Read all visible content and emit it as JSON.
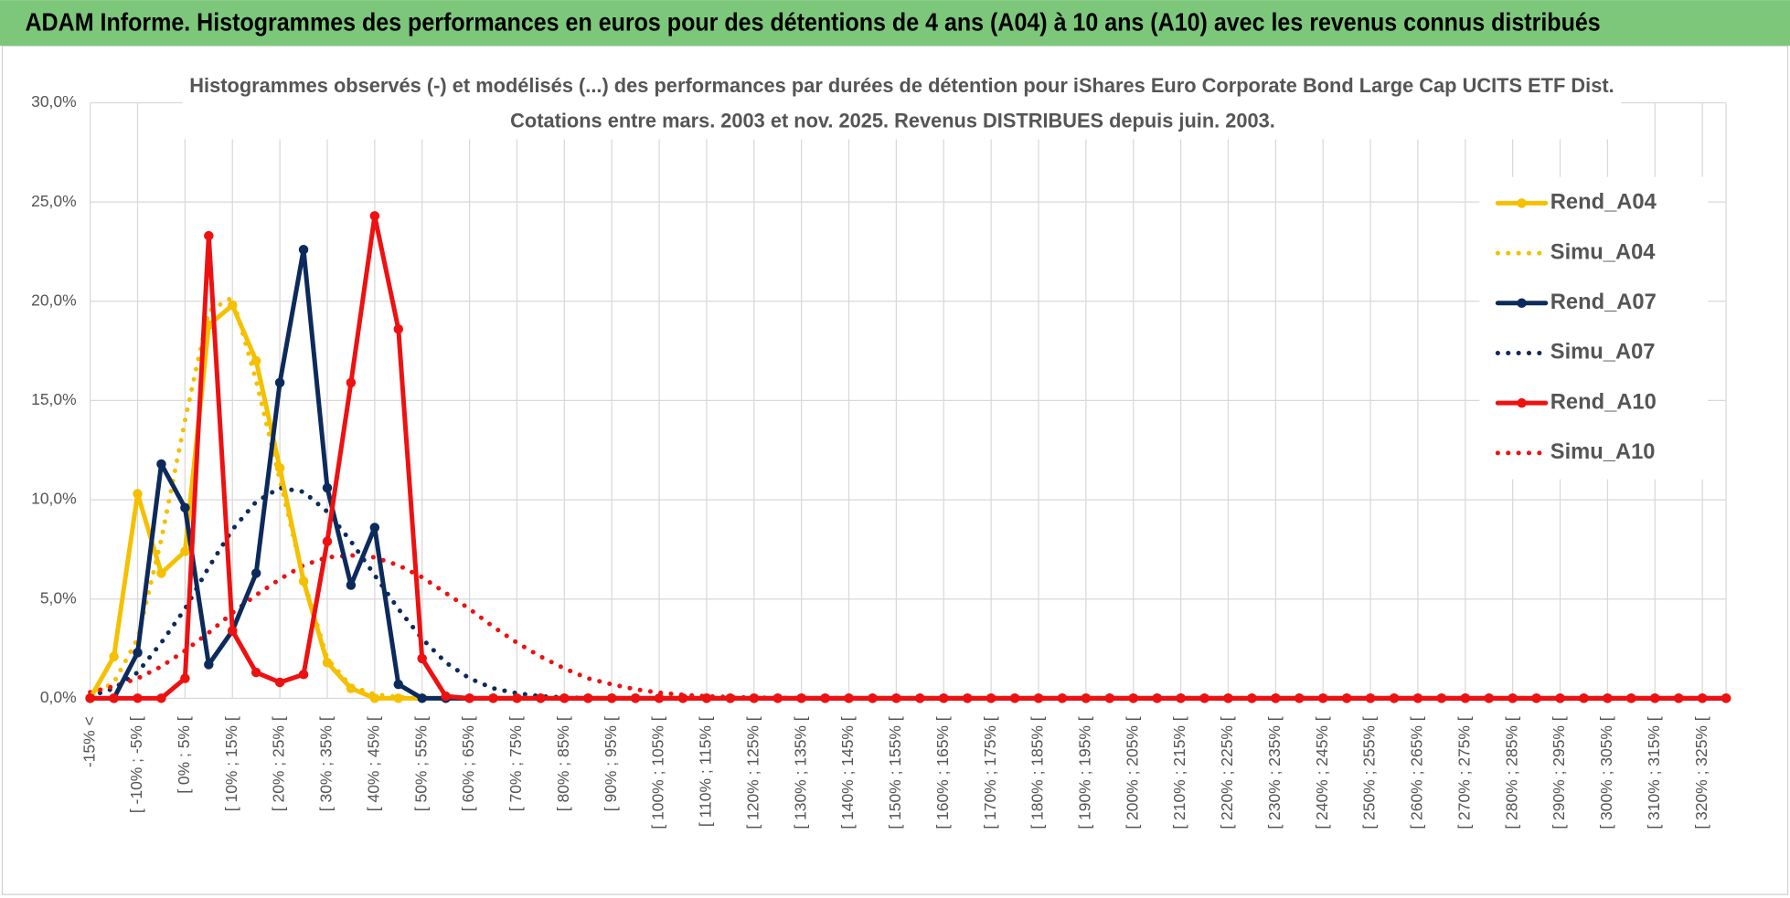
{
  "header": "ADAM Informe. Histogrammes des performances en euros pour des détentions de 4 ans (A04) à 10 ans (A10) avec les revenus connus distribués",
  "chart_data": {
    "type": "line",
    "title": "Histogrammes observés (-) et modélisés (...) des performances par durées de détention pour iShares Euro Corporate Bond Large Cap UCITS ETF Dist.",
    "subtitle": "Cotations entre mars. 2003  et nov. 2025.  Revenus DISTRIBUES depuis juin. 2003.",
    "categories": [
      "-15% <",
      null,
      "[ -10% ; -5% [",
      null,
      "[ 0% ; 5% [",
      null,
      "[ 10% ; 15% [",
      null,
      "[ 20% ; 25% [",
      null,
      "[ 30% ; 35% [",
      null,
      "[ 40% ; 45% [",
      null,
      "[ 50% ; 55% [",
      null,
      "[ 60% ; 65% [",
      null,
      "[ 70% ; 75% [",
      null,
      "[ 80% ; 85% [",
      null,
      "[ 90% ; 95% [",
      null,
      "[ 100% ; 105% [",
      null,
      "[ 110% ; 115% [",
      null,
      "[ 120% ; 125% [",
      null,
      "[ 130% ; 135% [",
      null,
      "[ 140% ; 145% [",
      null,
      "[ 150% ; 155% [",
      null,
      "[ 160% ; 165% [",
      null,
      "[ 170% ; 175% [",
      null,
      "[ 180% ; 185% [",
      null,
      "[ 190% ; 195% [",
      null,
      "[ 200% ; 205% [",
      null,
      "[ 210% ; 215% [",
      null,
      "[ 220% ; 225% [",
      null,
      "[ 230% ; 235% [",
      null,
      "[ 240% ; 245% [",
      null,
      "[ 250% ; 255% [",
      null,
      "[ 260% ; 265% [",
      null,
      "[ 270% ; 275% [",
      null,
      "[ 280% ; 285% [",
      null,
      "[ 290% ; 295% [",
      null,
      "[ 300% ; 305% [",
      null,
      "[ 310% ; 315% [",
      null,
      "[ 320% ; 325% [",
      null
    ],
    "series": [
      {
        "name": "Rend_A04",
        "color": "#f5c000",
        "style": "solid",
        "values": [
          0,
          2.1,
          10.3,
          6.3,
          7.4,
          18.8,
          19.8,
          17.0,
          11.6,
          5.9,
          1.8,
          0.5,
          0,
          0,
          0,
          0,
          0,
          0,
          0,
          0,
          0,
          0,
          0,
          0,
          0,
          0,
          0,
          0,
          0,
          0,
          0,
          0,
          0,
          0,
          0,
          0,
          0,
          0,
          0,
          0,
          0,
          0,
          0,
          0,
          0,
          0,
          0,
          0,
          0,
          0,
          0,
          0,
          0,
          0,
          0,
          0,
          0,
          0,
          0,
          0,
          0,
          0,
          0,
          0,
          0,
          0,
          0,
          0,
          0,
          0
        ]
      },
      {
        "name": "Simu_A04",
        "color": "#f5c000",
        "style": "dotted",
        "values": [
          0.1,
          0.8,
          3.0,
          8.0,
          14.0,
          19.5,
          20.2,
          16.0,
          11.0,
          6.0,
          2.0,
          0.6,
          0.2,
          0.05,
          0,
          0,
          0,
          0,
          0,
          0,
          0,
          0,
          0,
          0,
          0,
          0,
          0,
          0,
          0,
          0,
          0,
          0,
          0,
          0,
          0,
          0,
          0,
          0,
          0,
          0,
          0,
          0,
          0,
          0,
          0,
          0,
          0,
          0,
          0,
          0,
          0,
          0,
          0,
          0,
          0,
          0,
          0,
          0,
          0,
          0,
          0,
          0,
          0,
          0,
          0,
          0,
          0,
          0,
          0,
          0
        ]
      },
      {
        "name": "Rend_A07",
        "color": "#0d2a5c",
        "style": "solid",
        "values": [
          0,
          0,
          2.3,
          11.8,
          9.6,
          1.7,
          3.4,
          6.3,
          15.9,
          22.6,
          10.6,
          5.7,
          8.6,
          0.7,
          0,
          0,
          0,
          0,
          0,
          0,
          0,
          0,
          0,
          0,
          0,
          0,
          0,
          0,
          0,
          0,
          0,
          0,
          0,
          0,
          0,
          0,
          0,
          0,
          0,
          0,
          0,
          0,
          0,
          0,
          0,
          0,
          0,
          0,
          0,
          0,
          0,
          0,
          0,
          0,
          0,
          0,
          0,
          0,
          0,
          0,
          0,
          0,
          0,
          0,
          0,
          0,
          0,
          0,
          0,
          0
        ]
      },
      {
        "name": "Simu_A07",
        "color": "#0d2a5c",
        "style": "dotted",
        "values": [
          0.1,
          0.5,
          1.3,
          2.8,
          4.5,
          6.6,
          8.5,
          9.9,
          10.6,
          10.4,
          9.4,
          7.9,
          6.2,
          4.5,
          3.0,
          1.8,
          1.0,
          0.5,
          0.25,
          0.1,
          0.04,
          0.01,
          0,
          0,
          0,
          0,
          0,
          0,
          0,
          0,
          0,
          0,
          0,
          0,
          0,
          0,
          0,
          0,
          0,
          0,
          0,
          0,
          0,
          0,
          0,
          0,
          0,
          0,
          0,
          0,
          0,
          0,
          0,
          0,
          0,
          0,
          0,
          0,
          0,
          0,
          0,
          0,
          0,
          0,
          0,
          0,
          0,
          0,
          0,
          0
        ]
      },
      {
        "name": "Rend_A10",
        "color": "#ee1111",
        "style": "solid",
        "values": [
          0,
          0,
          0,
          0,
          1.0,
          23.3,
          3.4,
          1.3,
          0.8,
          1.2,
          7.9,
          15.9,
          24.3,
          18.6,
          2.0,
          0.1,
          0,
          0,
          0,
          0,
          0,
          0,
          0,
          0,
          0,
          0,
          0,
          0,
          0,
          0,
          0,
          0,
          0,
          0,
          0,
          0,
          0,
          0,
          0,
          0,
          0,
          0,
          0,
          0,
          0,
          0,
          0,
          0,
          0,
          0,
          0,
          0,
          0,
          0,
          0,
          0,
          0,
          0,
          0,
          0,
          0,
          0,
          0,
          0,
          0,
          0,
          0,
          0,
          0,
          0
        ]
      },
      {
        "name": "Simu_A10",
        "color": "#ee1111",
        "style": "dotted",
        "values": [
          0.3,
          0.6,
          1.0,
          1.6,
          2.4,
          3.3,
          4.3,
          5.2,
          6.0,
          6.7,
          7.1,
          7.2,
          7.1,
          6.7,
          6.1,
          5.3,
          4.5,
          3.6,
          2.8,
          2.1,
          1.5,
          1.0,
          0.7,
          0.45,
          0.28,
          0.17,
          0.1,
          0.06,
          0.03,
          0.02,
          0.01,
          0,
          0,
          0,
          0,
          0,
          0,
          0,
          0,
          0,
          0,
          0,
          0,
          0,
          0,
          0,
          0,
          0,
          0,
          0,
          0,
          0,
          0,
          0,
          0,
          0,
          0,
          0,
          0,
          0,
          0,
          0,
          0,
          0,
          0,
          0,
          0,
          0,
          0,
          0
        ]
      }
    ],
    "ylim": [
      0,
      30
    ],
    "yticks": [
      {
        "value": 0,
        "label": "0,0%"
      },
      {
        "value": 5,
        "label": "5,0%"
      },
      {
        "value": 10,
        "label": "10,0%"
      },
      {
        "value": 15,
        "label": "15,0%"
      },
      {
        "value": 20,
        "label": "20,0%"
      },
      {
        "value": 25,
        "label": "25,0%"
      },
      {
        "value": 30,
        "label": "30,0%"
      }
    ],
    "grid": true,
    "legend": "right"
  }
}
